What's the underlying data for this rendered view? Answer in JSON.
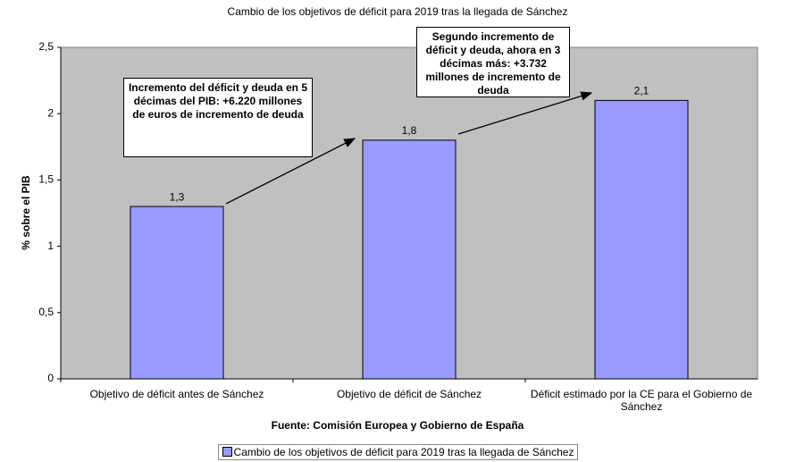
{
  "chart_data": {
    "type": "bar",
    "title": "Cambio de los objetivos de déficit para 2019 tras la llegada de Sánchez",
    "y_label": "% sobre el PIB",
    "x_label": "Fuente: Comisión Europea y Gobierno de España",
    "categories": [
      "Objetivo de déficit antes de Sánchez",
      "Objetivo de déficit de Sánchez",
      "Déficit estimado por la CE para el Gobierno de Sánchez"
    ],
    "series": [
      {
        "name": "Cambio de los objetivos de déficit para 2019 tras la llegada de Sánchez",
        "color": "#9999ff",
        "values": [
          1.3,
          1.8,
          2.1
        ],
        "value_labels": [
          "1,3",
          "1,8",
          "2,1"
        ]
      }
    ],
    "ylim": [
      0,
      2.5
    ],
    "yticks": [
      0,
      {
        "value": 0.5,
        "label": "0,5"
      },
      1,
      {
        "value": 1.5,
        "label": "1,5"
      },
      2,
      {
        "value": 2.5,
        "label": "2,5"
      }
    ],
    "plot_background": "#c0c0c0",
    "annotations": [
      "Incremento del déficit y deuda en 5 décimas del PIB: +6.220 millones de euros de incremento de deuda",
      "Segundo incremento de déficit y deuda, ahora en 3 décimas más: +3.732 millones de incremento de deuda"
    ]
  }
}
